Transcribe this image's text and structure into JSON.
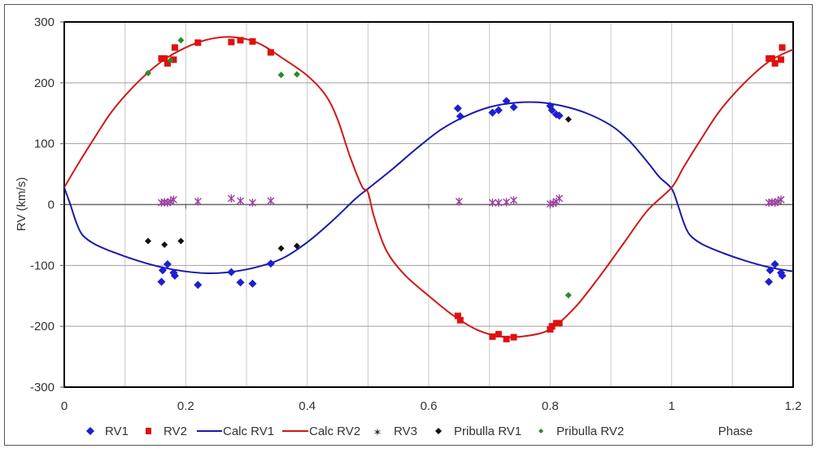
{
  "chart_data": {
    "type": "scatter",
    "title": "",
    "xlabel": "Phase",
    "ylabel": "RV  (km/s)",
    "xlim": [
      0,
      1.2
    ],
    "ylim": [
      -300,
      300
    ],
    "x_ticks": [
      "0",
      "0.2",
      "0.4",
      "0.6",
      "0.8",
      "1",
      "1.2"
    ],
    "y_ticks": [
      "300",
      "200",
      "100",
      "0",
      "-100",
      "-200",
      "-300"
    ],
    "grid": true,
    "legend_position": "bottom",
    "legend": [
      "RV1",
      "RV2",
      "Calc RV1",
      "Calc RV2",
      "RV3",
      "Pribulla RV1",
      "Pribulla RV2"
    ],
    "series": [
      {
        "name": "RV1",
        "kind": "scatter",
        "marker": "diamond",
        "color": "#1f1fd0",
        "points": [
          [
            0.16,
            -127
          ],
          [
            0.162,
            -108
          ],
          [
            0.17,
            -98
          ],
          [
            0.18,
            -112
          ],
          [
            0.182,
            -117
          ],
          [
            0.22,
            -132
          ],
          [
            0.275,
            -111
          ],
          [
            0.29,
            -128
          ],
          [
            0.31,
            -130
          ],
          [
            0.34,
            -97
          ],
          [
            0.648,
            158
          ],
          [
            0.652,
            145
          ],
          [
            0.705,
            151
          ],
          [
            0.715,
            155
          ],
          [
            0.728,
            170
          ],
          [
            0.74,
            160
          ],
          [
            0.8,
            162
          ],
          [
            0.803,
            155
          ],
          [
            0.81,
            148
          ],
          [
            0.815,
            146
          ],
          [
            1.16,
            -127
          ],
          [
            1.162,
            -108
          ],
          [
            1.17,
            -98
          ],
          [
            1.18,
            -112
          ],
          [
            1.182,
            -117
          ]
        ]
      },
      {
        "name": "RV2",
        "kind": "scatter",
        "marker": "square",
        "color": "#e01010",
        "points": [
          [
            0.16,
            240
          ],
          [
            0.165,
            240
          ],
          [
            0.17,
            232
          ],
          [
            0.18,
            238
          ],
          [
            0.182,
            258
          ],
          [
            0.22,
            266
          ],
          [
            0.275,
            267
          ],
          [
            0.29,
            270
          ],
          [
            0.31,
            268
          ],
          [
            0.34,
            250
          ],
          [
            0.648,
            -183
          ],
          [
            0.652,
            -190
          ],
          [
            0.705,
            -217
          ],
          [
            0.715,
            -213
          ],
          [
            0.728,
            -221
          ],
          [
            0.74,
            -218
          ],
          [
            0.8,
            -205
          ],
          [
            0.803,
            -200
          ],
          [
            0.81,
            -195
          ],
          [
            0.815,
            -195
          ],
          [
            1.16,
            240
          ],
          [
            1.165,
            240
          ],
          [
            1.17,
            232
          ],
          [
            1.18,
            238
          ],
          [
            1.182,
            258
          ]
        ]
      },
      {
        "name": "Calc RV1",
        "kind": "line",
        "color": "#1a1aa8",
        "points": [
          [
            0,
            28
          ],
          [
            0.01,
            0
          ],
          [
            0.02,
            -30
          ],
          [
            0.03,
            -50
          ],
          [
            0.05,
            -65
          ],
          [
            0.08,
            -78
          ],
          [
            0.12,
            -92
          ],
          [
            0.16,
            -103
          ],
          [
            0.2,
            -110
          ],
          [
            0.24,
            -113
          ],
          [
            0.28,
            -110
          ],
          [
            0.32,
            -102
          ],
          [
            0.36,
            -88
          ],
          [
            0.4,
            -62
          ],
          [
            0.44,
            -28
          ],
          [
            0.48,
            10
          ],
          [
            0.5,
            26
          ],
          [
            0.54,
            58
          ],
          [
            0.58,
            92
          ],
          [
            0.62,
            123
          ],
          [
            0.66,
            145
          ],
          [
            0.7,
            160
          ],
          [
            0.74,
            167
          ],
          [
            0.78,
            168
          ],
          [
            0.82,
            162
          ],
          [
            0.86,
            150
          ],
          [
            0.9,
            130
          ],
          [
            0.93,
            105
          ],
          [
            0.96,
            70
          ],
          [
            0.98,
            45
          ],
          [
            1.0,
            26
          ],
          [
            1.01,
            0
          ],
          [
            1.02,
            -30
          ],
          [
            1.03,
            -50
          ],
          [
            1.05,
            -65
          ],
          [
            1.08,
            -78
          ],
          [
            1.12,
            -92
          ],
          [
            1.16,
            -103
          ],
          [
            1.2,
            -110
          ]
        ]
      },
      {
        "name": "Calc RV2",
        "kind": "line",
        "color": "#d01818",
        "points": [
          [
            0,
            28
          ],
          [
            0.02,
            62
          ],
          [
            0.05,
            110
          ],
          [
            0.08,
            155
          ],
          [
            0.12,
            200
          ],
          [
            0.16,
            235
          ],
          [
            0.2,
            258
          ],
          [
            0.24,
            272
          ],
          [
            0.28,
            275
          ],
          [
            0.32,
            265
          ],
          [
            0.36,
            240
          ],
          [
            0.4,
            212
          ],
          [
            0.43,
            180
          ],
          [
            0.45,
            140
          ],
          [
            0.47,
            80
          ],
          [
            0.49,
            30
          ],
          [
            0.5,
            20
          ],
          [
            0.51,
            -20
          ],
          [
            0.53,
            -75
          ],
          [
            0.56,
            -115
          ],
          [
            0.6,
            -150
          ],
          [
            0.64,
            -182
          ],
          [
            0.68,
            -206
          ],
          [
            0.72,
            -217
          ],
          [
            0.76,
            -216
          ],
          [
            0.8,
            -205
          ],
          [
            0.84,
            -170
          ],
          [
            0.88,
            -120
          ],
          [
            0.92,
            -65
          ],
          [
            0.96,
            -10
          ],
          [
            1.0,
            28
          ],
          [
            1.02,
            62
          ],
          [
            1.05,
            110
          ],
          [
            1.08,
            155
          ],
          [
            1.12,
            200
          ],
          [
            1.16,
            235
          ],
          [
            1.2,
            255
          ]
        ]
      },
      {
        "name": "RV3",
        "kind": "scatter",
        "marker": "star",
        "color": "#9b3fa0",
        "points": [
          [
            0.16,
            3
          ],
          [
            0.165,
            4
          ],
          [
            0.17,
            3
          ],
          [
            0.175,
            5
          ],
          [
            0.18,
            8
          ],
          [
            0.22,
            5
          ],
          [
            0.275,
            10
          ],
          [
            0.29,
            6
          ],
          [
            0.31,
            3
          ],
          [
            0.34,
            6
          ],
          [
            0.65,
            5
          ],
          [
            0.705,
            3
          ],
          [
            0.715,
            3
          ],
          [
            0.728,
            4
          ],
          [
            0.74,
            7
          ],
          [
            0.8,
            1
          ],
          [
            0.805,
            2
          ],
          [
            0.81,
            5
          ],
          [
            0.815,
            10
          ],
          [
            1.16,
            3
          ],
          [
            1.165,
            4
          ],
          [
            1.17,
            3
          ],
          [
            1.175,
            5
          ],
          [
            1.18,
            8
          ]
        ]
      },
      {
        "name": "Pribulla RV1",
        "kind": "scatter",
        "marker": "diamond",
        "color": "#111111",
        "points": [
          [
            0.138,
            -60
          ],
          [
            0.165,
            -66
          ],
          [
            0.192,
            -60
          ],
          [
            0.357,
            -72
          ],
          [
            0.383,
            -68
          ],
          [
            0.83,
            140
          ]
        ]
      },
      {
        "name": "Pribulla RV2",
        "kind": "scatter",
        "marker": "diamond",
        "color": "#2a8a2a",
        "points": [
          [
            0.138,
            216
          ],
          [
            0.175,
            237
          ],
          [
            0.192,
            270
          ],
          [
            0.357,
            213
          ],
          [
            0.383,
            214
          ],
          [
            0.83,
            -149
          ]
        ]
      }
    ]
  },
  "legend_labels": {
    "rv1": "RV1",
    "rv2": "RV2",
    "calc_rv1": "Calc RV1",
    "calc_rv2": "Calc RV2",
    "rv3": "RV3",
    "pribulla_rv1": "Pribulla RV1",
    "pribulla_rv2": "Pribulla RV2"
  },
  "axis": {
    "xlabel": "Phase",
    "ylabel": "RV  (km/s)"
  }
}
